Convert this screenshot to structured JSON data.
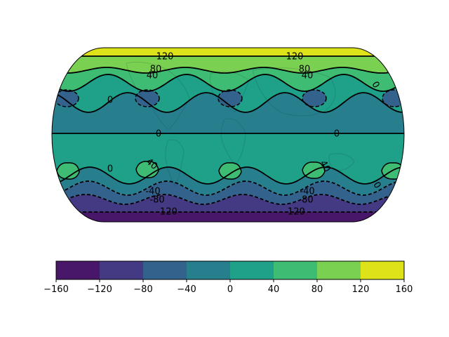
{
  "map": {
    "projection": "Eckert IV",
    "field_colormap": "viridis",
    "land_outlines": "faint coastlines",
    "contour_labels": [
      {
        "text": "120",
        "kind": "solid"
      },
      {
        "text": "120",
        "kind": "solid"
      },
      {
        "text": "80",
        "kind": "solid"
      },
      {
        "text": "80",
        "kind": "solid"
      },
      {
        "text": "40",
        "kind": "solid"
      },
      {
        "text": "40",
        "kind": "solid"
      },
      {
        "text": "0",
        "kind": "solid"
      },
      {
        "text": "0",
        "kind": "solid"
      },
      {
        "text": "0",
        "kind": "solid"
      },
      {
        "text": "0",
        "kind": "solid"
      },
      {
        "text": "0",
        "kind": "solid"
      },
      {
        "text": "0",
        "kind": "solid"
      },
      {
        "text": "40",
        "kind": "solid"
      },
      {
        "text": "40",
        "kind": "solid"
      },
      {
        "text": "-40",
        "kind": "dashed"
      },
      {
        "text": "-40",
        "kind": "dashed"
      },
      {
        "text": "-80",
        "kind": "dashed"
      },
      {
        "text": "-80",
        "kind": "dashed"
      },
      {
        "text": "-120",
        "kind": "dashed"
      },
      {
        "text": "-120",
        "kind": "dashed"
      }
    ]
  },
  "colorbar": {
    "levels": [
      -160,
      -120,
      -80,
      -40,
      0,
      40,
      80,
      120,
      160
    ],
    "tick_labels": [
      "−160",
      "−120",
      "−80",
      "−40",
      "0",
      "40",
      "80",
      "120",
      "160"
    ],
    "colors": [
      "#481769",
      "#443983",
      "#33638d",
      "#277f8e",
      "#1fa088",
      "#3fbc73",
      "#7ad151",
      "#dde318"
    ],
    "orientation": "horizontal"
  }
}
